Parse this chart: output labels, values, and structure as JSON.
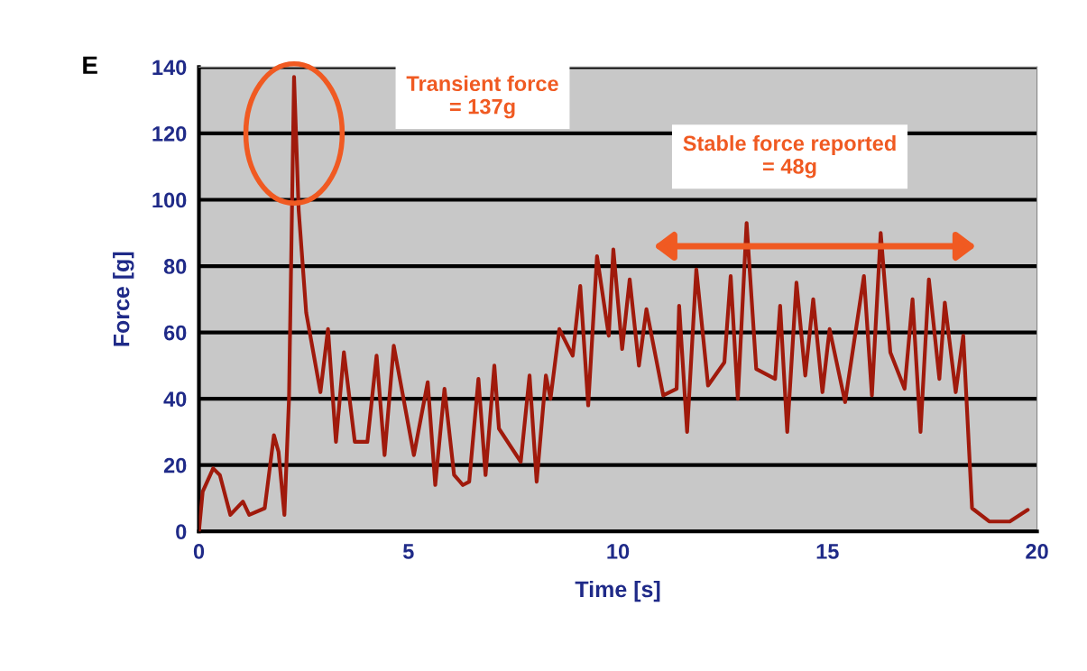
{
  "chart_data": {
    "type": "line",
    "xlabel": "Time [s]",
    "ylabel": "Force [g]",
    "xlim": [
      0,
      20
    ],
    "xticks": [
      0,
      5,
      10,
      15,
      20
    ],
    "ylim": [
      0,
      140
    ],
    "yticks": [
      0,
      20,
      40,
      60,
      80,
      100,
      120,
      140
    ],
    "grid": "y",
    "marker": "none",
    "line_style": "solid",
    "series": [
      {
        "color": "#a01a0c",
        "x": [
          0,
          0.09,
          0.34,
          0.5,
          0.75,
          1.05,
          1.2,
          1.57,
          1.79,
          1.9,
          2.04,
          2.15,
          2.27,
          2.38,
          2.56,
          2.9,
          3.08,
          3.27,
          3.46,
          3.72,
          4.02,
          4.24,
          4.43,
          4.65,
          5.13,
          5.46,
          5.64,
          5.86,
          6.09,
          6.3,
          6.45,
          6.67,
          6.84,
          7.05,
          7.16,
          7.68,
          7.89,
          8.06,
          8.28,
          8.39,
          8.6,
          8.92,
          9.1,
          9.29,
          9.5,
          9.78,
          9.89,
          10.1,
          10.28,
          10.5,
          10.68,
          11.08,
          11.4,
          11.46,
          11.65,
          11.87,
          12.15,
          12.54,
          12.69,
          12.86,
          13.07,
          13.3,
          13.75,
          13.87,
          14.04,
          14.26,
          14.47,
          14.66,
          14.88,
          15.05,
          15.42,
          15.87,
          16.06,
          16.27,
          16.5,
          16.84,
          17.03,
          17.22,
          17.42,
          17.67,
          17.8,
          18.06,
          18.24,
          18.45,
          18.86,
          19.35,
          19.78
        ],
        "values": [
          0,
          12,
          19,
          17,
          5,
          9,
          5,
          7,
          29,
          24,
          5,
          40,
          137,
          97,
          66,
          42,
          61,
          27,
          54,
          27,
          27,
          53,
          23,
          56,
          23,
          45,
          14,
          43,
          17,
          14,
          15,
          46,
          17,
          50,
          31,
          21,
          47,
          15,
          47,
          40,
          61,
          53,
          74,
          38,
          83,
          59,
          85,
          55,
          76,
          50,
          67,
          41,
          43,
          68,
          30,
          79,
          44,
          51,
          77,
          40,
          93,
          49,
          46,
          68,
          30,
          75,
          47,
          70,
          42,
          61,
          39,
          77,
          41,
          90,
          54,
          43,
          70,
          30,
          76,
          46,
          69,
          42,
          59,
          7,
          3,
          3,
          6.5
        ]
      }
    ],
    "annotations": [
      "E",
      "Transient force\n= 137g",
      "Stable force reported\n= 48g"
    ]
  }
}
